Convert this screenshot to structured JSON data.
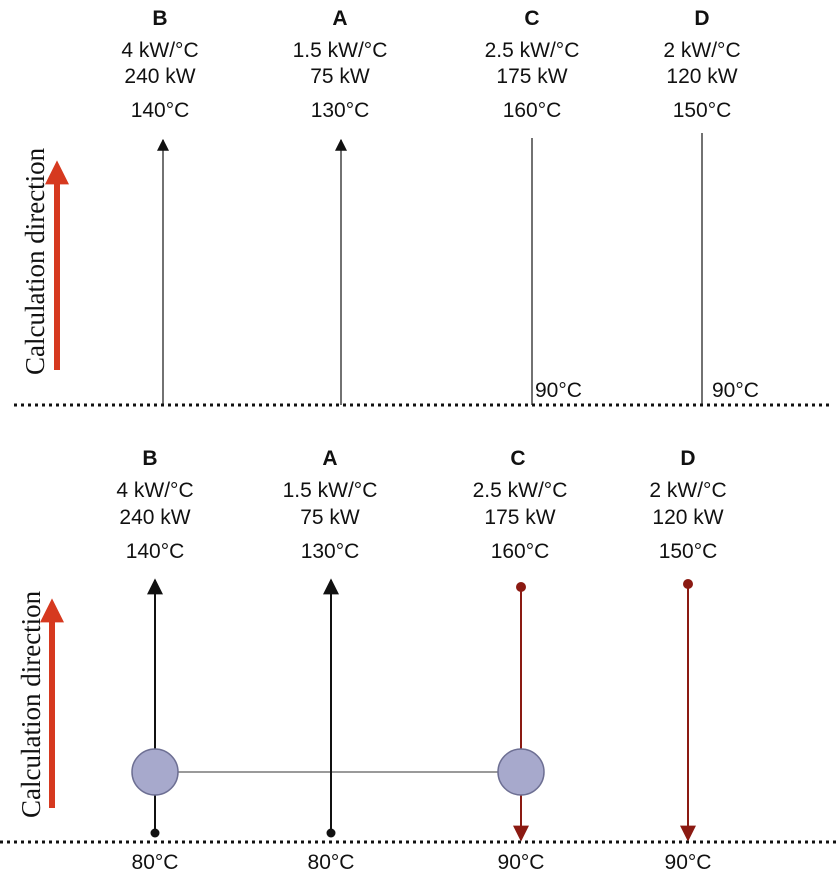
{
  "colors": {
    "hot": "#8b1a12",
    "cold": "#111111",
    "arrow": "#d6391f",
    "exchanger": "#a7a9cc",
    "exchanger_edge": "#6d6f93",
    "link": "#9a9a9a",
    "pinch": "#111111"
  },
  "panels": [
    {
      "calc_label": "Calculation direction",
      "streams": [
        {
          "name": "B",
          "cp": "4 kW/°C",
          "duty": "240 kW",
          "temp": "140°C",
          "kind": "cold",
          "end_label": ""
        },
        {
          "name": "A",
          "cp": "1.5 kW/°C",
          "duty": "75 kW",
          "temp": "130°C",
          "kind": "cold",
          "end_label": ""
        },
        {
          "name": "C",
          "cp": "2.5 kW/°C",
          "duty": "175 kW",
          "temp": "160°C",
          "kind": "hot",
          "end_label": "90°C"
        },
        {
          "name": "D",
          "cp": "2 kW/°C",
          "duty": "120 kW",
          "temp": "150°C",
          "kind": "hot",
          "end_label": "90°C"
        }
      ]
    },
    {
      "calc_label": "Calculation direction",
      "streams": [
        {
          "name": "B",
          "cp": "4 kW/°C",
          "duty": "240 kW",
          "temp": "140°C",
          "kind": "cold",
          "end_label": "80°C"
        },
        {
          "name": "A",
          "cp": "1.5 kW/°C",
          "duty": "75 kW",
          "temp": "130°C",
          "kind": "cold",
          "end_label": "80°C"
        },
        {
          "name": "C",
          "cp": "2.5 kW/°C",
          "duty": "175 kW",
          "temp": "160°C",
          "kind": "hot",
          "end_label": "90°C"
        },
        {
          "name": "D",
          "cp": "2 kW/°C",
          "duty": "120 kW",
          "temp": "150°C",
          "kind": "hot",
          "end_label": "90°C"
        }
      ]
    }
  ]
}
